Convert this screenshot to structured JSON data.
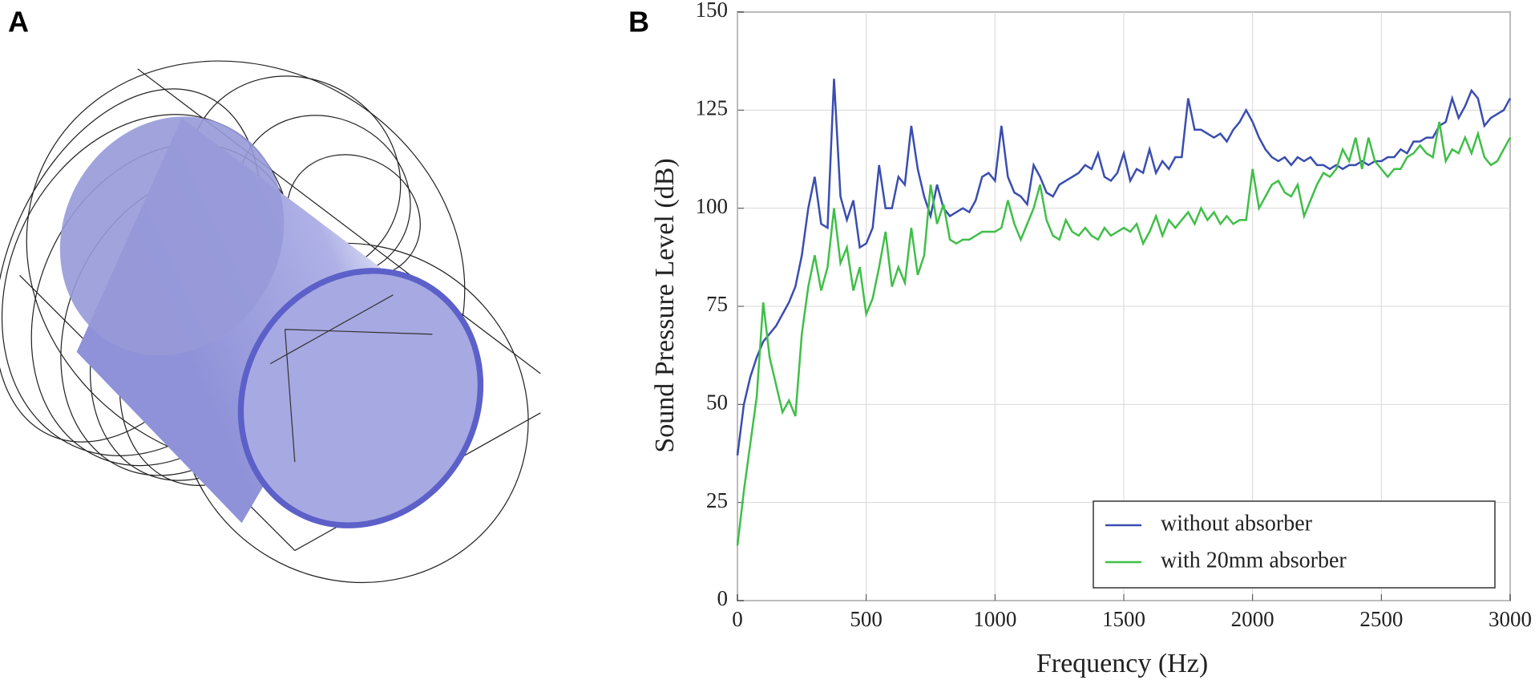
{
  "figure": {
    "left_panel_label": "A"
  },
  "chart_data": {
    "type": "line",
    "panel_label": "B",
    "xlabel": "Frequency (Hz)",
    "ylabel": "Sound Pressure Level (dB)",
    "x": [
      0,
      25,
      50,
      75,
      100,
      125,
      150,
      175,
      200,
      225,
      250,
      275,
      300,
      325,
      350,
      375,
      400,
      425,
      450,
      475,
      500,
      525,
      550,
      575,
      600,
      625,
      650,
      675,
      700,
      725,
      750,
      775,
      800,
      825,
      850,
      875,
      900,
      925,
      950,
      975,
      1000,
      1025,
      1050,
      1075,
      1100,
      1125,
      1150,
      1175,
      1200,
      1225,
      1250,
      1275,
      1300,
      1325,
      1350,
      1375,
      1400,
      1425,
      1450,
      1475,
      1500,
      1525,
      1550,
      1575,
      1600,
      1625,
      1650,
      1675,
      1700,
      1725,
      1750,
      1775,
      1800,
      1825,
      1850,
      1875,
      1900,
      1925,
      1950,
      1975,
      2000,
      2025,
      2050,
      2075,
      2100,
      2125,
      2150,
      2175,
      2200,
      2225,
      2250,
      2275,
      2300,
      2325,
      2350,
      2375,
      2400,
      2425,
      2450,
      2475,
      2500,
      2525,
      2550,
      2575,
      2600,
      2625,
      2650,
      2675,
      2700,
      2725,
      2750,
      2775,
      2800,
      2825,
      2850,
      2875,
      2900,
      2925,
      2950,
      2975,
      3000
    ],
    "series": [
      {
        "name": "without absorber",
        "color": "#3a4db0",
        "values": [
          37,
          50,
          57,
          62,
          66,
          68,
          70,
          73,
          76,
          80,
          88,
          100,
          108,
          96,
          95,
          133,
          103,
          97,
          102,
          90,
          91,
          95,
          111,
          100,
          100,
          108,
          106,
          121,
          110,
          103,
          98,
          106,
          100,
          98,
          99,
          100,
          99,
          102,
          108,
          109,
          107,
          121,
          108,
          104,
          103,
          101,
          111,
          108,
          104,
          103,
          106,
          107,
          108,
          109,
          111,
          110,
          114,
          108,
          107,
          109,
          114,
          107,
          110,
          109,
          115,
          109,
          112,
          110,
          113,
          113,
          128,
          120,
          120,
          119,
          118,
          119,
          117,
          120,
          122,
          125,
          122,
          118,
          115,
          113,
          112,
          113,
          111,
          113,
          112,
          113,
          111,
          111,
          110,
          111,
          110,
          111,
          111,
          112,
          111,
          112,
          112,
          113,
          113,
          115,
          114,
          117,
          117,
          118,
          118,
          121,
          122,
          128,
          123,
          126,
          130,
          128,
          121,
          123,
          124,
          125,
          128
        ]
      },
      {
        "name": "with 20mm absorber",
        "color": "#3fbf48",
        "values": [
          14,
          28,
          40,
          52,
          76,
          62,
          55,
          48,
          51,
          47,
          68,
          80,
          88,
          79,
          85,
          100,
          86,
          90,
          79,
          85,
          73,
          77,
          85,
          94,
          80,
          85,
          81,
          95,
          83,
          88,
          106,
          96,
          101,
          92,
          91,
          92,
          92,
          93,
          94,
          94,
          94,
          95,
          102,
          96,
          92,
          96,
          100,
          106,
          97,
          93,
          92,
          97,
          94,
          93,
          95,
          93,
          92,
          95,
          93,
          94,
          95,
          94,
          96,
          91,
          94,
          98,
          93,
          97,
          95,
          97,
          99,
          96,
          100,
          97,
          99,
          96,
          98,
          96,
          97,
          97,
          110,
          100,
          103,
          106,
          107,
          104,
          103,
          106,
          98,
          102,
          106,
          109,
          108,
          110,
          115,
          112,
          118,
          110,
          118,
          112,
          110,
          108,
          110,
          110,
          113,
          114,
          116,
          114,
          113,
          122,
          112,
          115,
          114,
          118,
          114,
          119,
          113,
          111,
          112,
          115,
          118
        ]
      }
    ],
    "xlim": [
      0,
      3000
    ],
    "xticks": [
      0,
      500,
      1000,
      1500,
      2000,
      2500,
      3000
    ],
    "ylim": [
      0,
      150
    ],
    "yticks": [
      0,
      25,
      50,
      75,
      100,
      125,
      150
    ],
    "grid": true,
    "legend": "lower right"
  }
}
